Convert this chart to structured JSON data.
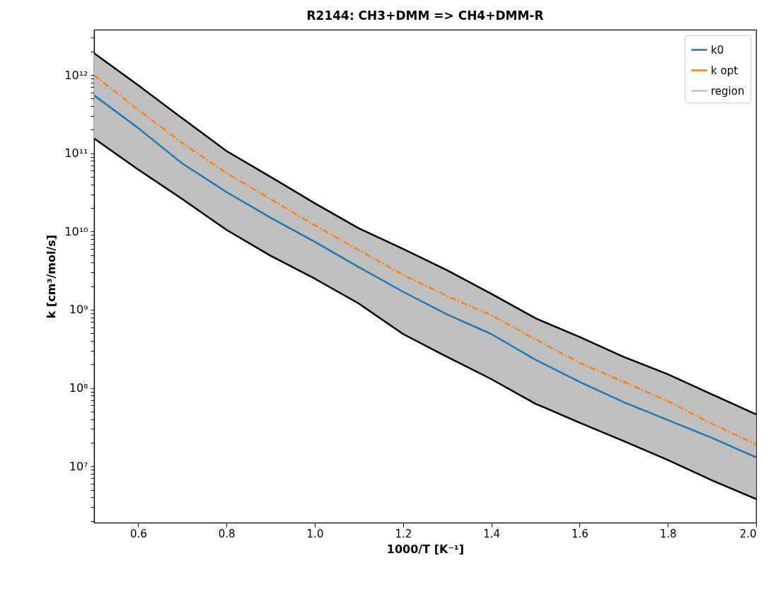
{
  "chart_data": {
    "type": "line",
    "title": "R2144: CH3+DMM => CH4+DMM-R",
    "xlabel": "1000/T [K⁻¹]",
    "ylabel": "k [cm³/mol/s]",
    "x": [
      0.5,
      0.6,
      0.7,
      0.8,
      0.9,
      1.0,
      1.1,
      1.2,
      1.3,
      1.4,
      1.5,
      1.6,
      1.7,
      1.8,
      1.9,
      2.0
    ],
    "series": [
      {
        "name": "region",
        "type": "area",
        "color": "#bfbfbf",
        "values": [
          1900000000000.0,
          740000000000.0,
          280000000000.0,
          107000000000.0,
          50000000000.0,
          23000000000.0,
          11000000000.0,
          6000000000.0,
          3200000000.0,
          1600000000.0,
          780000000.0,
          450000000.0,
          250000000.0,
          150000000.0,
          83000000.0,
          46000000.0
        ]
      },
      {
        "color": "#000000",
        "line_style": "solid",
        "values": [
          155000000000.0,
          62000000000.0,
          26000000000.0,
          10500000000.0,
          4900000000.0,
          2500000000.0,
          1200000000.0,
          490000000.0,
          250000000.0,
          130000000.0,
          63000000.0,
          36000000.0,
          21000000.0,
          12000000.0,
          6600000.0,
          3800000.0
        ]
      },
      {
        "name": "k0",
        "color": "#1f77b4",
        "line_style": "solid",
        "values": [
          550000000000.0,
          210000000000.0,
          74000000000.0,
          32000000000.0,
          15000000000.0,
          7400000000.0,
          3500000000.0,
          1700000000.0,
          870000000.0,
          490000000.0,
          230000000.0,
          120000000.0,
          66000000.0,
          39000000.0,
          23000000.0,
          13000000.0
        ]
      },
      {
        "name": "k opt",
        "color": "#ff7f0e",
        "line_style": "dashdot",
        "values": [
          1000000000000.0,
          360000000000.0,
          135000000000.0,
          56000000000.0,
          26000000000.0,
          12000000000.0,
          5800000000.0,
          2800000000.0,
          1500000000.0,
          850000000.0,
          420000000.0,
          210000000.0,
          120000000.0,
          68000000.0,
          35000000.0,
          19000000.0
        ]
      }
    ],
    "log": "y",
    "xlim": [
      0.5,
      2.0
    ],
    "ylim": [
      1900000.0,
      3800000000000.0
    ],
    "xticks": [
      0.6,
      0.8,
      {
        "value": 1.0,
        "label": "1.0"
      },
      1.2,
      1.4,
      1.6,
      1.8,
      {
        "value": 2.0,
        "label": "2.0"
      }
    ],
    "yticks": [
      {
        "value": 2000000.0,
        "label": null
      },
      {
        "value": 3000000.0,
        "label": null
      },
      {
        "value": 4000000.0,
        "label": null
      },
      {
        "value": 5000000.0,
        "label": null
      },
      {
        "value": 6000000.0,
        "label": null
      },
      {
        "value": 7000000.0,
        "label": null
      },
      {
        "value": 8000000.0,
        "label": null
      },
      {
        "value": 9000000.0,
        "label": null
      },
      {
        "value": 10000000.0,
        "label": "10⁷"
      },
      {
        "value": 20000000.0,
        "label": null
      },
      {
        "value": 30000000.0,
        "label": null
      },
      {
        "value": 40000000.0,
        "label": null
      },
      {
        "value": 50000000.0,
        "label": null
      },
      {
        "value": 60000000.0,
        "label": null
      },
      {
        "value": 70000000.0,
        "label": null
      },
      {
        "value": 80000000.0,
        "label": null
      },
      {
        "value": 90000000.0,
        "label": null
      },
      {
        "value": 100000000.0,
        "label": "10⁸"
      },
      {
        "value": 200000000.0,
        "label": null
      },
      {
        "value": 300000000.0,
        "label": null
      },
      {
        "value": 400000000.0,
        "label": null
      },
      {
        "value": 500000000.0,
        "label": null
      },
      {
        "value": 600000000.0,
        "label": null
      },
      {
        "value": 700000000.0,
        "label": null
      },
      {
        "value": 800000000.0,
        "label": null
      },
      {
        "value": 900000000.0,
        "label": null
      },
      {
        "value": 1000000000.0,
        "label": "10⁹"
      },
      {
        "value": 2000000000.0,
        "label": null
      },
      {
        "value": 3000000000.0,
        "label": null
      },
      {
        "value": 4000000000.0,
        "label": null
      },
      {
        "value": 5000000000.0,
        "label": null
      },
      {
        "value": 6000000000.0,
        "label": null
      },
      {
        "value": 7000000000.0,
        "label": null
      },
      {
        "value": 8000000000.0,
        "label": null
      },
      {
        "value": 9000000000.0,
        "label": null
      },
      {
        "value": 10000000000.0,
        "label": "10¹⁰"
      },
      {
        "value": 20000000000.0,
        "label": null
      },
      {
        "value": 30000000000.0,
        "label": null
      },
      {
        "value": 40000000000.0,
        "label": null
      },
      {
        "value": 50000000000.0,
        "label": null
      },
      {
        "value": 60000000000.0,
        "label": null
      },
      {
        "value": 70000000000.0,
        "label": null
      },
      {
        "value": 80000000000.0,
        "label": null
      },
      {
        "value": 90000000000.0,
        "label": null
      },
      {
        "value": 100000000000.0,
        "label": "10¹¹"
      },
      {
        "value": 200000000000.0,
        "label": null
      },
      {
        "value": 300000000000.0,
        "label": null
      },
      {
        "value": 400000000000.0,
        "label": null
      },
      {
        "value": 500000000000.0,
        "label": null
      },
      {
        "value": 600000000000.0,
        "label": null
      },
      {
        "value": 700000000000.0,
        "label": null
      },
      {
        "value": 800000000000.0,
        "label": null
      },
      {
        "value": 900000000000.0,
        "label": null
      },
      {
        "value": 1000000000000.0,
        "label": "10¹²"
      },
      {
        "value": 2000000000000.0,
        "label": null
      },
      {
        "value": 3000000000000.0,
        "label": null
      }
    ],
    "grid": false,
    "legend": "top right",
    "marker": "none"
  }
}
